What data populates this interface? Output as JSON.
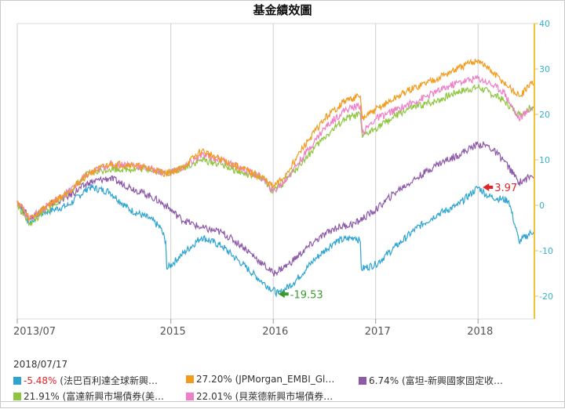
{
  "title": "基金績效圖",
  "date": "2018/07/17",
  "colors": {
    "blue": "#2ea4d1",
    "orange": "#f29b1d",
    "purple": "#8e5aa8",
    "green": "#8ec63f",
    "pink": "#ee7ec6",
    "axis_right": "#f0c23b",
    "axis_text": "#39b0c9",
    "grid": "#cfcfcf",
    "marker_high": "#e0252b",
    "marker_low": "#3a9a2f"
  },
  "legend": [
    {
      "key": "blue",
      "pct": "-5.48%",
      "text": " (法巴百利達全球新興…",
      "negative": true
    },
    {
      "key": "orange",
      "pct": "27.20%",
      "text": " (JPMorgan_EMBI_Gl…",
      "negative": false
    },
    {
      "key": "purple",
      "pct": "6.74%",
      "text": " (富坦-新興國家固定收…",
      "negative": false
    },
    {
      "key": "green",
      "pct": "21.91%",
      "text": " (富達新興市場債券(美…",
      "negative": false
    },
    {
      "key": "pink",
      "pct": "22.01%",
      "text": " (貝萊德新興市場債券…",
      "negative": false
    }
  ],
  "chart_data": {
    "type": "line",
    "title": "基金績效圖",
    "x_ticks": [
      "2013/07",
      "2015",
      "2016",
      "2017",
      "2018"
    ],
    "x_tick_t": [
      2013.5,
      2015.0,
      2016.0,
      2017.0,
      2018.0
    ],
    "xlim": [
      2013.5,
      2018.55
    ],
    "ylim": [
      -25,
      40
    ],
    "y_ticks": [
      -20,
      -10,
      0,
      10,
      20,
      30,
      40
    ],
    "y_axis_side": "right",
    "grid": true,
    "annotations": [
      {
        "label": "3.97",
        "x": 2018.0,
        "y": 3.97,
        "type": "high"
      },
      {
        "label": "-19.53",
        "x": 2016.05,
        "y": -19.53,
        "type": "low"
      }
    ],
    "series": [
      {
        "key": "blue",
        "name": "-5.48% (法巴百利達全球新興…",
        "x": [
          2013.5,
          2013.62,
          2013.7,
          2013.85,
          2014.0,
          2014.2,
          2014.4,
          2014.6,
          2014.8,
          2014.9,
          2014.95,
          2014.96,
          2015.1,
          2015.3,
          2015.5,
          2015.7,
          2015.9,
          2016.05,
          2016.2,
          2016.4,
          2016.6,
          2016.8,
          2016.85,
          2016.86,
          2017.0,
          2017.2,
          2017.4,
          2017.6,
          2017.8,
          2018.0,
          2018.1,
          2018.3,
          2018.4,
          2018.55
        ],
        "y": [
          1,
          -4,
          -2,
          -1,
          0,
          4,
          3,
          -1,
          -3,
          -5,
          -8,
          -14,
          -11,
          -7,
          -9,
          -13,
          -17,
          -19.5,
          -17,
          -12,
          -8,
          -7,
          -8,
          -14,
          -13,
          -9,
          -5,
          -2,
          0,
          3.97,
          2,
          1,
          -8,
          -5.48
        ]
      },
      {
        "key": "orange",
        "name": "27.20% (JPMorgan_EMBI_Gl…",
        "x": [
          2013.5,
          2013.62,
          2013.8,
          2014.0,
          2014.2,
          2014.4,
          2014.6,
          2014.8,
          2014.95,
          2015.1,
          2015.3,
          2015.5,
          2015.7,
          2015.9,
          2016.0,
          2016.1,
          2016.3,
          2016.5,
          2016.7,
          2016.85,
          2016.87,
          2017.0,
          2017.3,
          2017.6,
          2017.8,
          2018.0,
          2018.1,
          2018.25,
          2018.4,
          2018.55
        ],
        "y": [
          1,
          -3,
          0,
          3,
          7,
          9,
          9,
          8,
          7,
          8,
          12,
          10,
          8,
          6,
          4,
          6,
          13,
          19,
          23,
          24,
          19,
          21,
          25,
          28,
          30,
          32,
          30,
          27,
          24,
          27.2
        ]
      },
      {
        "key": "purple",
        "name": "6.74% (富坦-新興國家固定收…",
        "x": [
          2013.5,
          2013.62,
          2013.8,
          2014.0,
          2014.2,
          2014.4,
          2014.6,
          2014.8,
          2014.95,
          2015.1,
          2015.3,
          2015.5,
          2015.7,
          2015.9,
          2016.0,
          2016.15,
          2016.4,
          2016.6,
          2016.8,
          2017.0,
          2017.2,
          2017.4,
          2017.6,
          2017.8,
          2018.0,
          2018.1,
          2018.25,
          2018.4,
          2018.55
        ],
        "y": [
          1,
          -3,
          0,
          2,
          5,
          6,
          4,
          2,
          0,
          -3,
          -5,
          -6,
          -9,
          -13,
          -15,
          -13,
          -8,
          -5,
          -4,
          -1,
          3,
          6,
          9,
          11,
          13.5,
          13,
          10,
          5,
          6.74
        ]
      },
      {
        "key": "green",
        "name": "21.91% (富達新興市場債券(美…",
        "x": [
          2013.5,
          2013.62,
          2013.8,
          2014.0,
          2014.2,
          2014.4,
          2014.6,
          2014.8,
          2014.95,
          2015.1,
          2015.3,
          2015.5,
          2015.7,
          2015.9,
          2016.0,
          2016.1,
          2016.3,
          2016.5,
          2016.7,
          2016.85,
          2016.87,
          2017.0,
          2017.3,
          2017.6,
          2017.8,
          2018.0,
          2018.1,
          2018.25,
          2018.4,
          2018.55
        ],
        "y": [
          0,
          -4,
          -1,
          3,
          7,
          8,
          8,
          8,
          7,
          8,
          10,
          9,
          7,
          6,
          3,
          5,
          10,
          15,
          19,
          20,
          15,
          17,
          21,
          23,
          25,
          26,
          25,
          23,
          20,
          21.91
        ]
      },
      {
        "key": "pink",
        "name": "22.01% (貝萊德新興市場債券…",
        "x": [
          2013.5,
          2013.62,
          2013.8,
          2014.0,
          2014.2,
          2014.4,
          2014.6,
          2014.8,
          2014.95,
          2015.1,
          2015.3,
          2015.5,
          2015.7,
          2015.9,
          2016.0,
          2016.1,
          2016.3,
          2016.5,
          2016.7,
          2016.85,
          2016.87,
          2017.0,
          2017.3,
          2017.6,
          2017.8,
          2018.0,
          2018.1,
          2018.25,
          2018.4,
          2018.55
        ],
        "y": [
          1,
          -3,
          0,
          3,
          7,
          9,
          9,
          8,
          7,
          8,
          11,
          10,
          8,
          6,
          3,
          5,
          11,
          17,
          21,
          22,
          16,
          19,
          22,
          25,
          27,
          28,
          27,
          25,
          19,
          22.01
        ]
      }
    ]
  }
}
